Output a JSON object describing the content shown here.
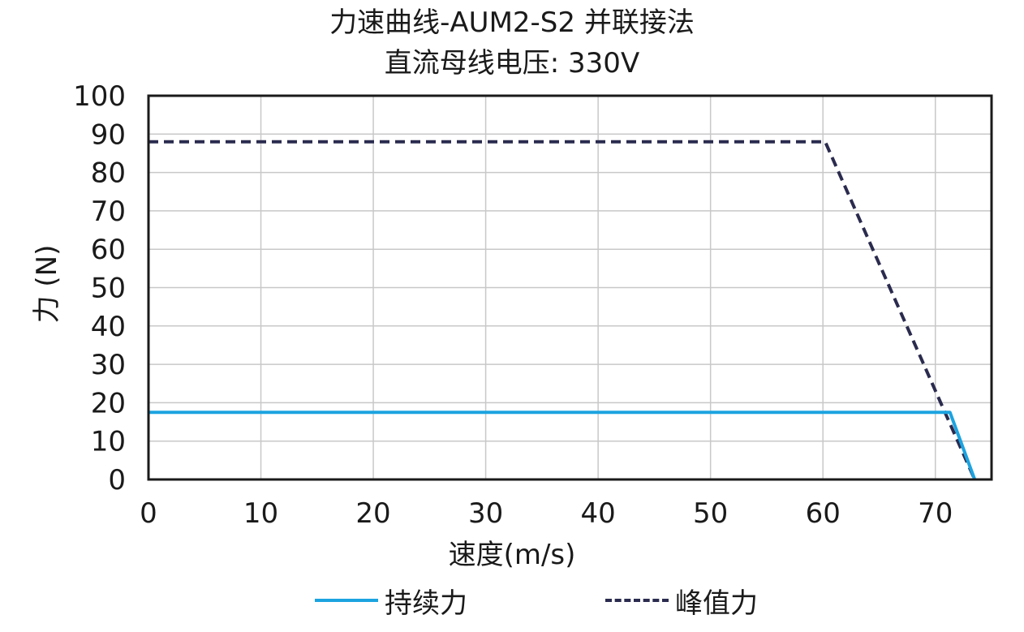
{
  "chart_data": {
    "type": "line",
    "title": "力速曲线-AUM2-S2 并联接法",
    "subtitle": "直流母线电压: 330V",
    "xlabel": "速度(m/s)",
    "ylabel": "力 (N)",
    "xlim": [
      0,
      75
    ],
    "ylim": [
      0,
      100
    ],
    "xticks": [
      "0",
      "10",
      "20",
      "30",
      "40",
      "50",
      "60",
      "70"
    ],
    "yticks": [
      "0",
      "10",
      "20",
      "30",
      "40",
      "50",
      "60",
      "70",
      "80",
      "90",
      "100"
    ],
    "grid": true,
    "legend_position": "bottom",
    "series": [
      {
        "name": "持续力",
        "color": "#1ca3e0",
        "style": "solid",
        "x": [
          0,
          71.3,
          73.5
        ],
        "y": [
          17.5,
          17.5,
          0
        ]
      },
      {
        "name": "峰值力",
        "color": "#2a2b4e",
        "style": "dashed",
        "x": [
          0,
          60.2,
          73.5
        ],
        "y": [
          88,
          88,
          0
        ]
      }
    ]
  }
}
